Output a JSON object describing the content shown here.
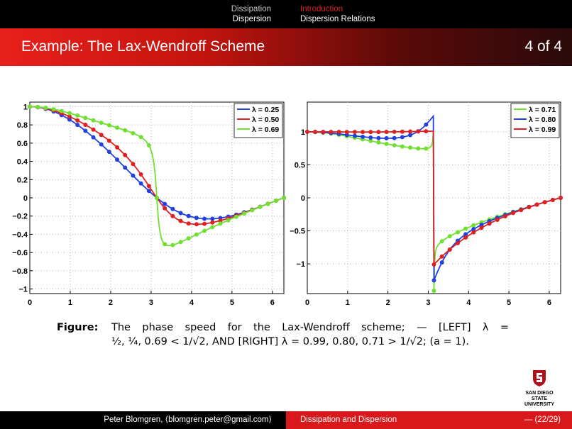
{
  "header": {
    "left_items": [
      "Dissipation",
      "Dispersion"
    ],
    "right_items": [
      "Introduction",
      "Dispersion Relations"
    ],
    "title": "Example: The Lax-Wendroff Scheme",
    "page_indicator": "4 of 4"
  },
  "chart_data": [
    {
      "type": "line",
      "title": "",
      "xlabel": "",
      "ylabel": "",
      "xlim": [
        0,
        6.2832
      ],
      "ylim": [
        -1.05,
        1.05
      ],
      "xticks": [
        "0",
        "1",
        "2",
        "3",
        "4",
        "5",
        "6"
      ],
      "yticks": [
        "−1",
        "−0.8",
        "−0.6",
        "−0.4",
        "−0.2",
        "0",
        "0.2",
        "0.4",
        "0.6",
        "0.8",
        "1"
      ],
      "legend_position": "top-right",
      "grid": true,
      "series": [
        {
          "name": "λ = 0.25",
          "color": "#2040e0",
          "lambda": 0.25
        },
        {
          "name": "λ = 0.50",
          "color": "#e02020",
          "lambda": 0.5
        },
        {
          "name": "λ = 0.69",
          "color": "#70e030",
          "lambda": 0.69
        }
      ]
    },
    {
      "type": "line",
      "title": "",
      "xlabel": "",
      "ylabel": "",
      "xlim": [
        0,
        6.2832
      ],
      "ylim": [
        -1.45,
        1.45
      ],
      "xticks": [
        "0",
        "1",
        "2",
        "3",
        "4",
        "5",
        "6"
      ],
      "yticks": [
        "−1",
        "−0.5",
        "0",
        "0.5",
        "1"
      ],
      "legend_position": "top-right",
      "grid": true,
      "series": [
        {
          "name": "λ = 0.71",
          "color": "#70e030",
          "lambda": 0.71
        },
        {
          "name": "λ = 0.80",
          "color": "#2040e0",
          "lambda": 0.8
        },
        {
          "name": "λ = 0.99",
          "color": "#e02020",
          "lambda": 0.99
        }
      ]
    }
  ],
  "caption": {
    "label": "Figure:",
    "line1": "The phase speed for the Lax-Wendroff scheme; — [LEFT] λ =",
    "line2": "½, ¼, 0.69 < 1/√2, AND [RIGHT] λ = 0.99, 0.80, 0.71 > 1/√2; (a = 1)."
  },
  "logo": {
    "line1": "SAN DIEGO STATE",
    "line2": "UNIVERSITY"
  },
  "footer": {
    "author": "Peter Blomgren, ⟨blomgren.peter@gmail.com⟩",
    "section": "Dissipation and Dispersion",
    "page": "— (22/29)"
  }
}
